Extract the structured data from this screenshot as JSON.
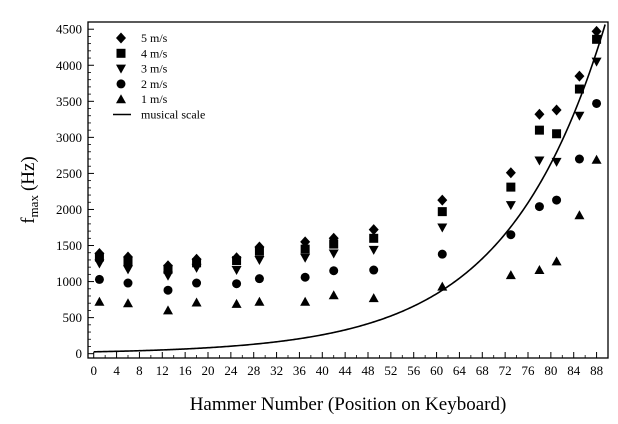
{
  "chart_data": {
    "type": "scatter",
    "xlabel": "Hammer Number   (Position on Keyboard)",
    "ylabel_main": "f",
    "ylabel_sub": "max",
    "ylabel_unit": "(Hz)",
    "xlim": [
      -1,
      90
    ],
    "ylim": [
      -60,
      4600
    ],
    "x_ticks": [
      0,
      4,
      8,
      12,
      16,
      20,
      24,
      28,
      32,
      36,
      40,
      44,
      48,
      52,
      56,
      60,
      64,
      68,
      72,
      76,
      80,
      84,
      88
    ],
    "y_ticks": [
      0,
      500,
      1000,
      1500,
      2000,
      2500,
      3000,
      3500,
      4000,
      4500
    ],
    "legend_position": "top-left",
    "series": [
      {
        "name": "5 m/s",
        "marker": "diamond",
        "x": [
          1,
          6,
          13,
          18,
          25,
          29,
          37,
          42,
          49,
          61,
          73,
          78,
          81,
          85,
          88
        ],
        "y": [
          1390,
          1340,
          1220,
          1310,
          1330,
          1480,
          1550,
          1600,
          1720,
          2130,
          2510,
          3320,
          3380,
          3850,
          4470
        ]
      },
      {
        "name": "4 m/s",
        "marker": "square",
        "x": [
          1,
          6,
          13,
          18,
          25,
          29,
          37,
          42,
          49,
          61,
          73,
          78,
          81,
          85,
          88
        ],
        "y": [
          1340,
          1280,
          1170,
          1260,
          1290,
          1420,
          1450,
          1520,
          1600,
          1970,
          2310,
          3100,
          3050,
          3670,
          4360
        ]
      },
      {
        "name": "3 m/s",
        "marker": "triangle-down",
        "x": [
          1,
          6,
          13,
          18,
          25,
          29,
          37,
          42,
          49,
          61,
          73,
          78,
          81,
          85,
          88
        ],
        "y": [
          1250,
          1170,
          1080,
          1190,
          1160,
          1300,
          1330,
          1390,
          1440,
          1750,
          2060,
          2680,
          2660,
          3300,
          4050
        ]
      },
      {
        "name": "2 m/s",
        "marker": "circle",
        "x": [
          1,
          6,
          13,
          18,
          25,
          29,
          37,
          42,
          49,
          61,
          73,
          78,
          81,
          85,
          88
        ],
        "y": [
          1030,
          980,
          880,
          980,
          970,
          1040,
          1060,
          1150,
          1160,
          1380,
          1650,
          2040,
          2130,
          2700,
          3470
        ]
      },
      {
        "name": "1 m/s",
        "marker": "triangle-up",
        "x": [
          1,
          6,
          13,
          18,
          25,
          29,
          37,
          42,
          49,
          61,
          73,
          78,
          81,
          85,
          88
        ],
        "y": [
          720,
          700,
          600,
          710,
          690,
          720,
          720,
          810,
          770,
          930,
          1090,
          1160,
          1280,
          1920,
          2690
        ]
      }
    ],
    "curve": {
      "name": "musical scale",
      "line": "solid"
    }
  }
}
